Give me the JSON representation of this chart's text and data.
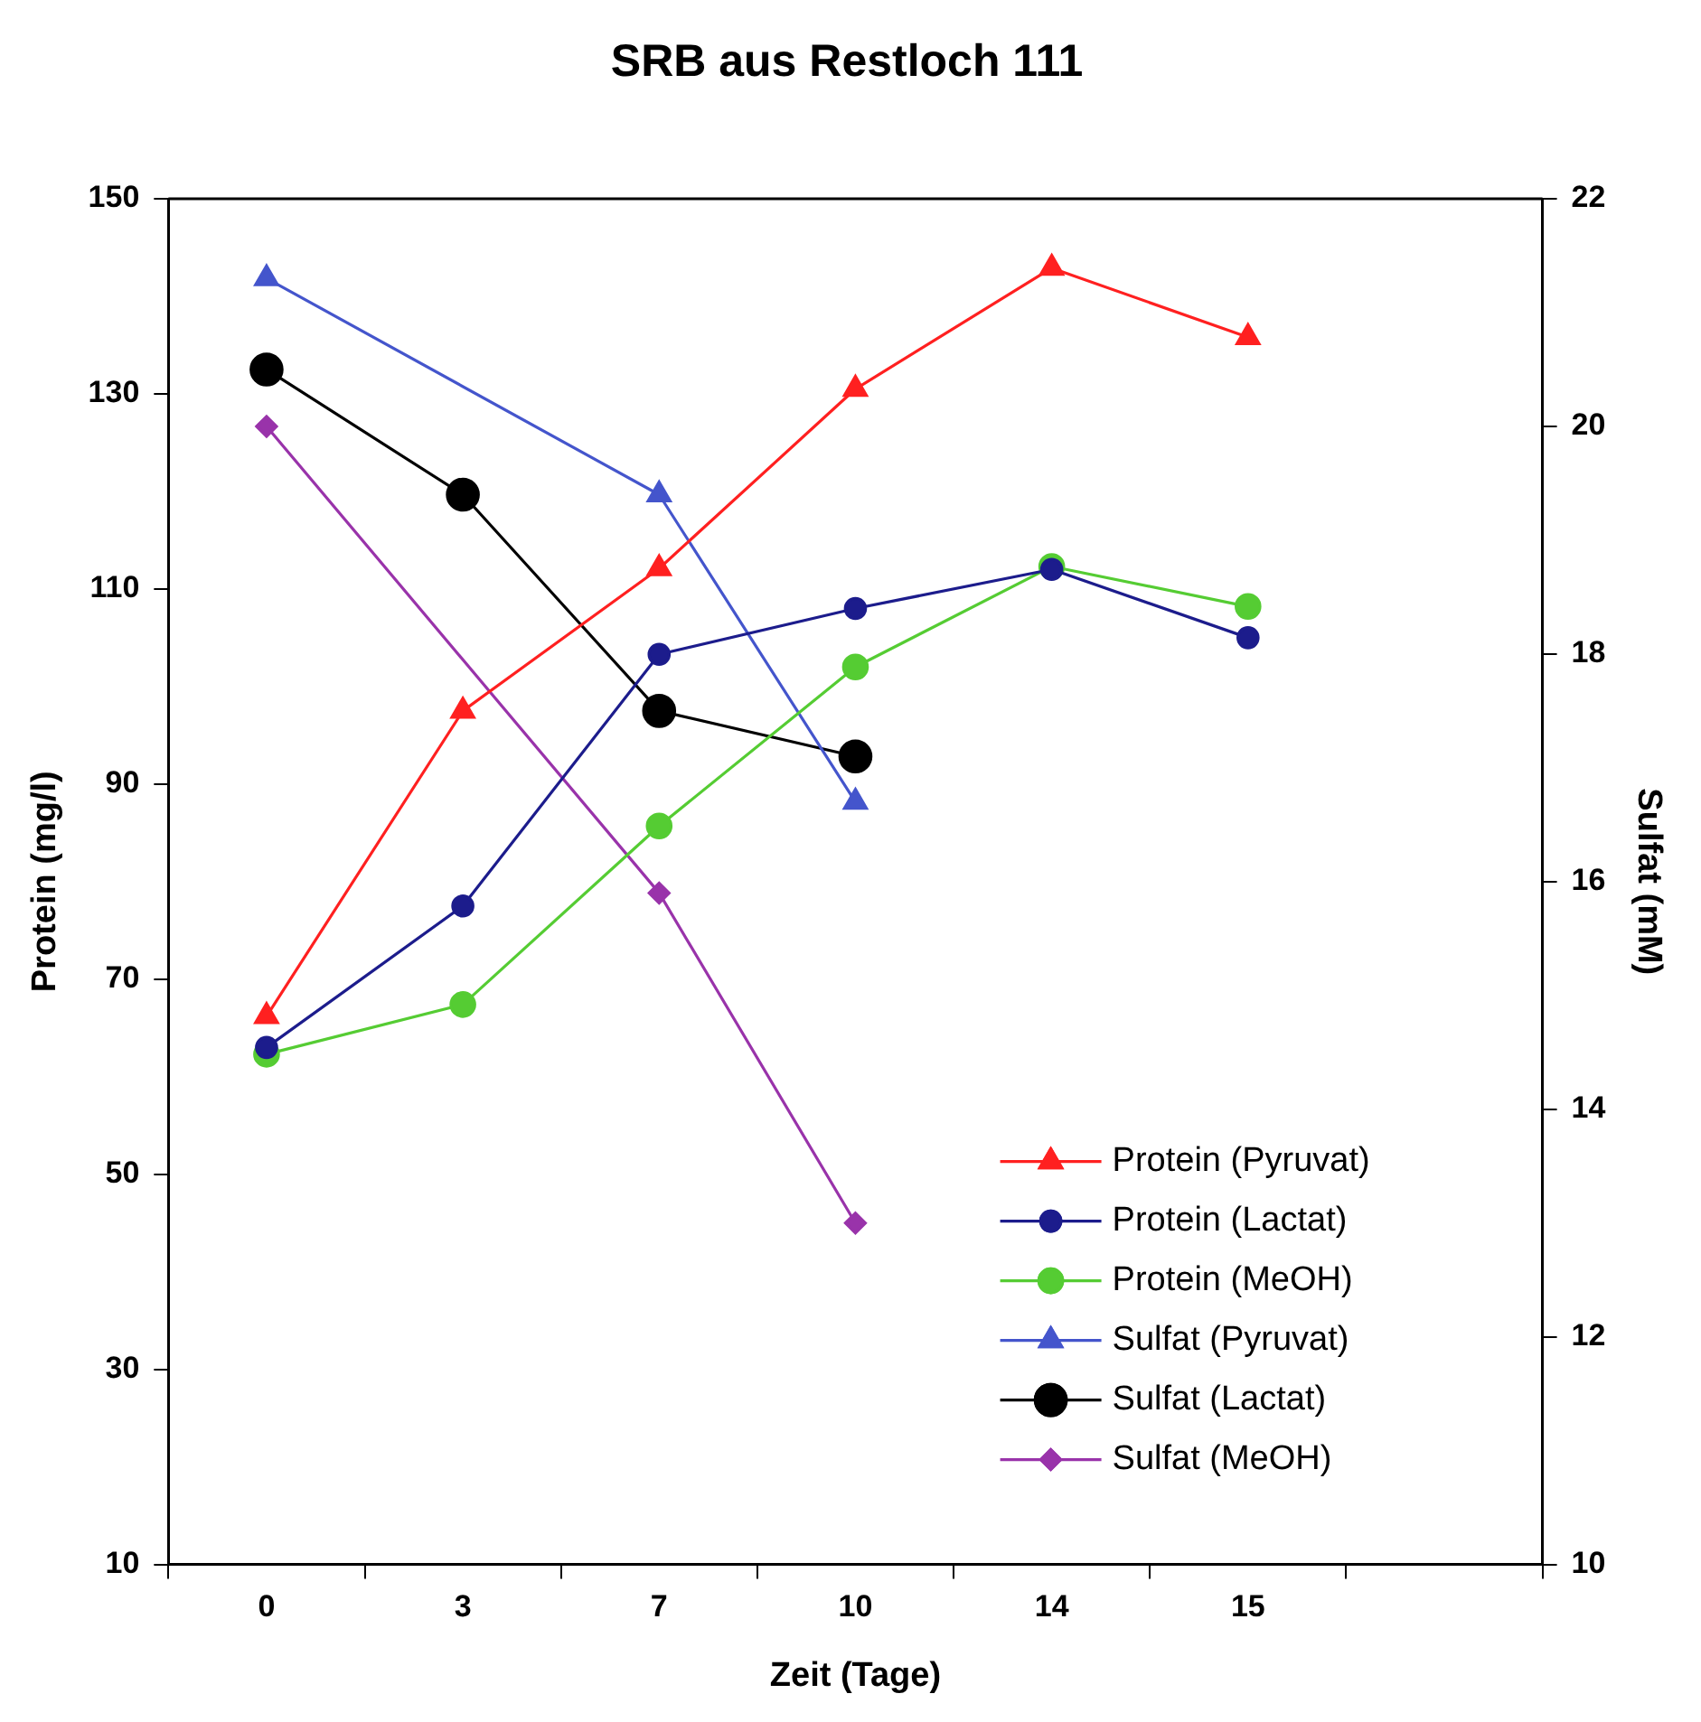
{
  "chart_data": {
    "type": "line",
    "title": "SRB aus Restloch 111",
    "xlabel": "Zeit (Tage)",
    "ylabel": "Protein (mg/l)",
    "y2label": "Sulfat (mM)",
    "categories": [
      "0",
      "3",
      "7",
      "10",
      "14",
      "15",
      null
    ],
    "ylim": [
      10,
      150
    ],
    "yticks": [
      10,
      30,
      50,
      70,
      90,
      110,
      130,
      150
    ],
    "y2lim": [
      10,
      22
    ],
    "y2ticks": [
      10,
      12,
      14,
      16,
      18,
      20,
      22
    ],
    "grid": false,
    "legend": "bottom right",
    "series": [
      {
        "name": "Protein (Pyruvat)",
        "color": "#ff2020",
        "marker": "triangle",
        "values": [
          66.2,
          97.5,
          112.1,
          130.5,
          142.9,
          135.8,
          null
        ]
      },
      {
        "name": "Protein (Lactat)",
        "color": "#1c1c8c",
        "marker": "circle",
        "values": [
          63.0,
          77.5,
          103.3,
          108.0,
          112.0,
          105.0,
          null
        ]
      },
      {
        "name": "Protein (MeOH)",
        "color": "#55cc33",
        "marker": "circle",
        "values": [
          62.3,
          67.4,
          85.7,
          102.0,
          112.3,
          108.2,
          null
        ]
      },
      {
        "name": "Sulfat (Pyruvat)",
        "color": "#4455cc",
        "marker": "triangle",
        "axis": "y2",
        "values": [
          21.3,
          null,
          19.4,
          16.7,
          null,
          null,
          null
        ]
      },
      {
        "name": "Sulfat (Lactat)",
        "color": "#000000",
        "marker": "circle",
        "axis": "y2",
        "values": [
          20.5,
          19.4,
          17.5,
          17.1,
          null,
          null,
          null
        ]
      },
      {
        "name": "Sulfat (MeOH)",
        "color": "#9933aa",
        "marker": "diamond",
        "axis": "y2",
        "values": [
          20.0,
          null,
          15.9,
          13.0,
          null,
          null,
          null
        ]
      }
    ]
  }
}
